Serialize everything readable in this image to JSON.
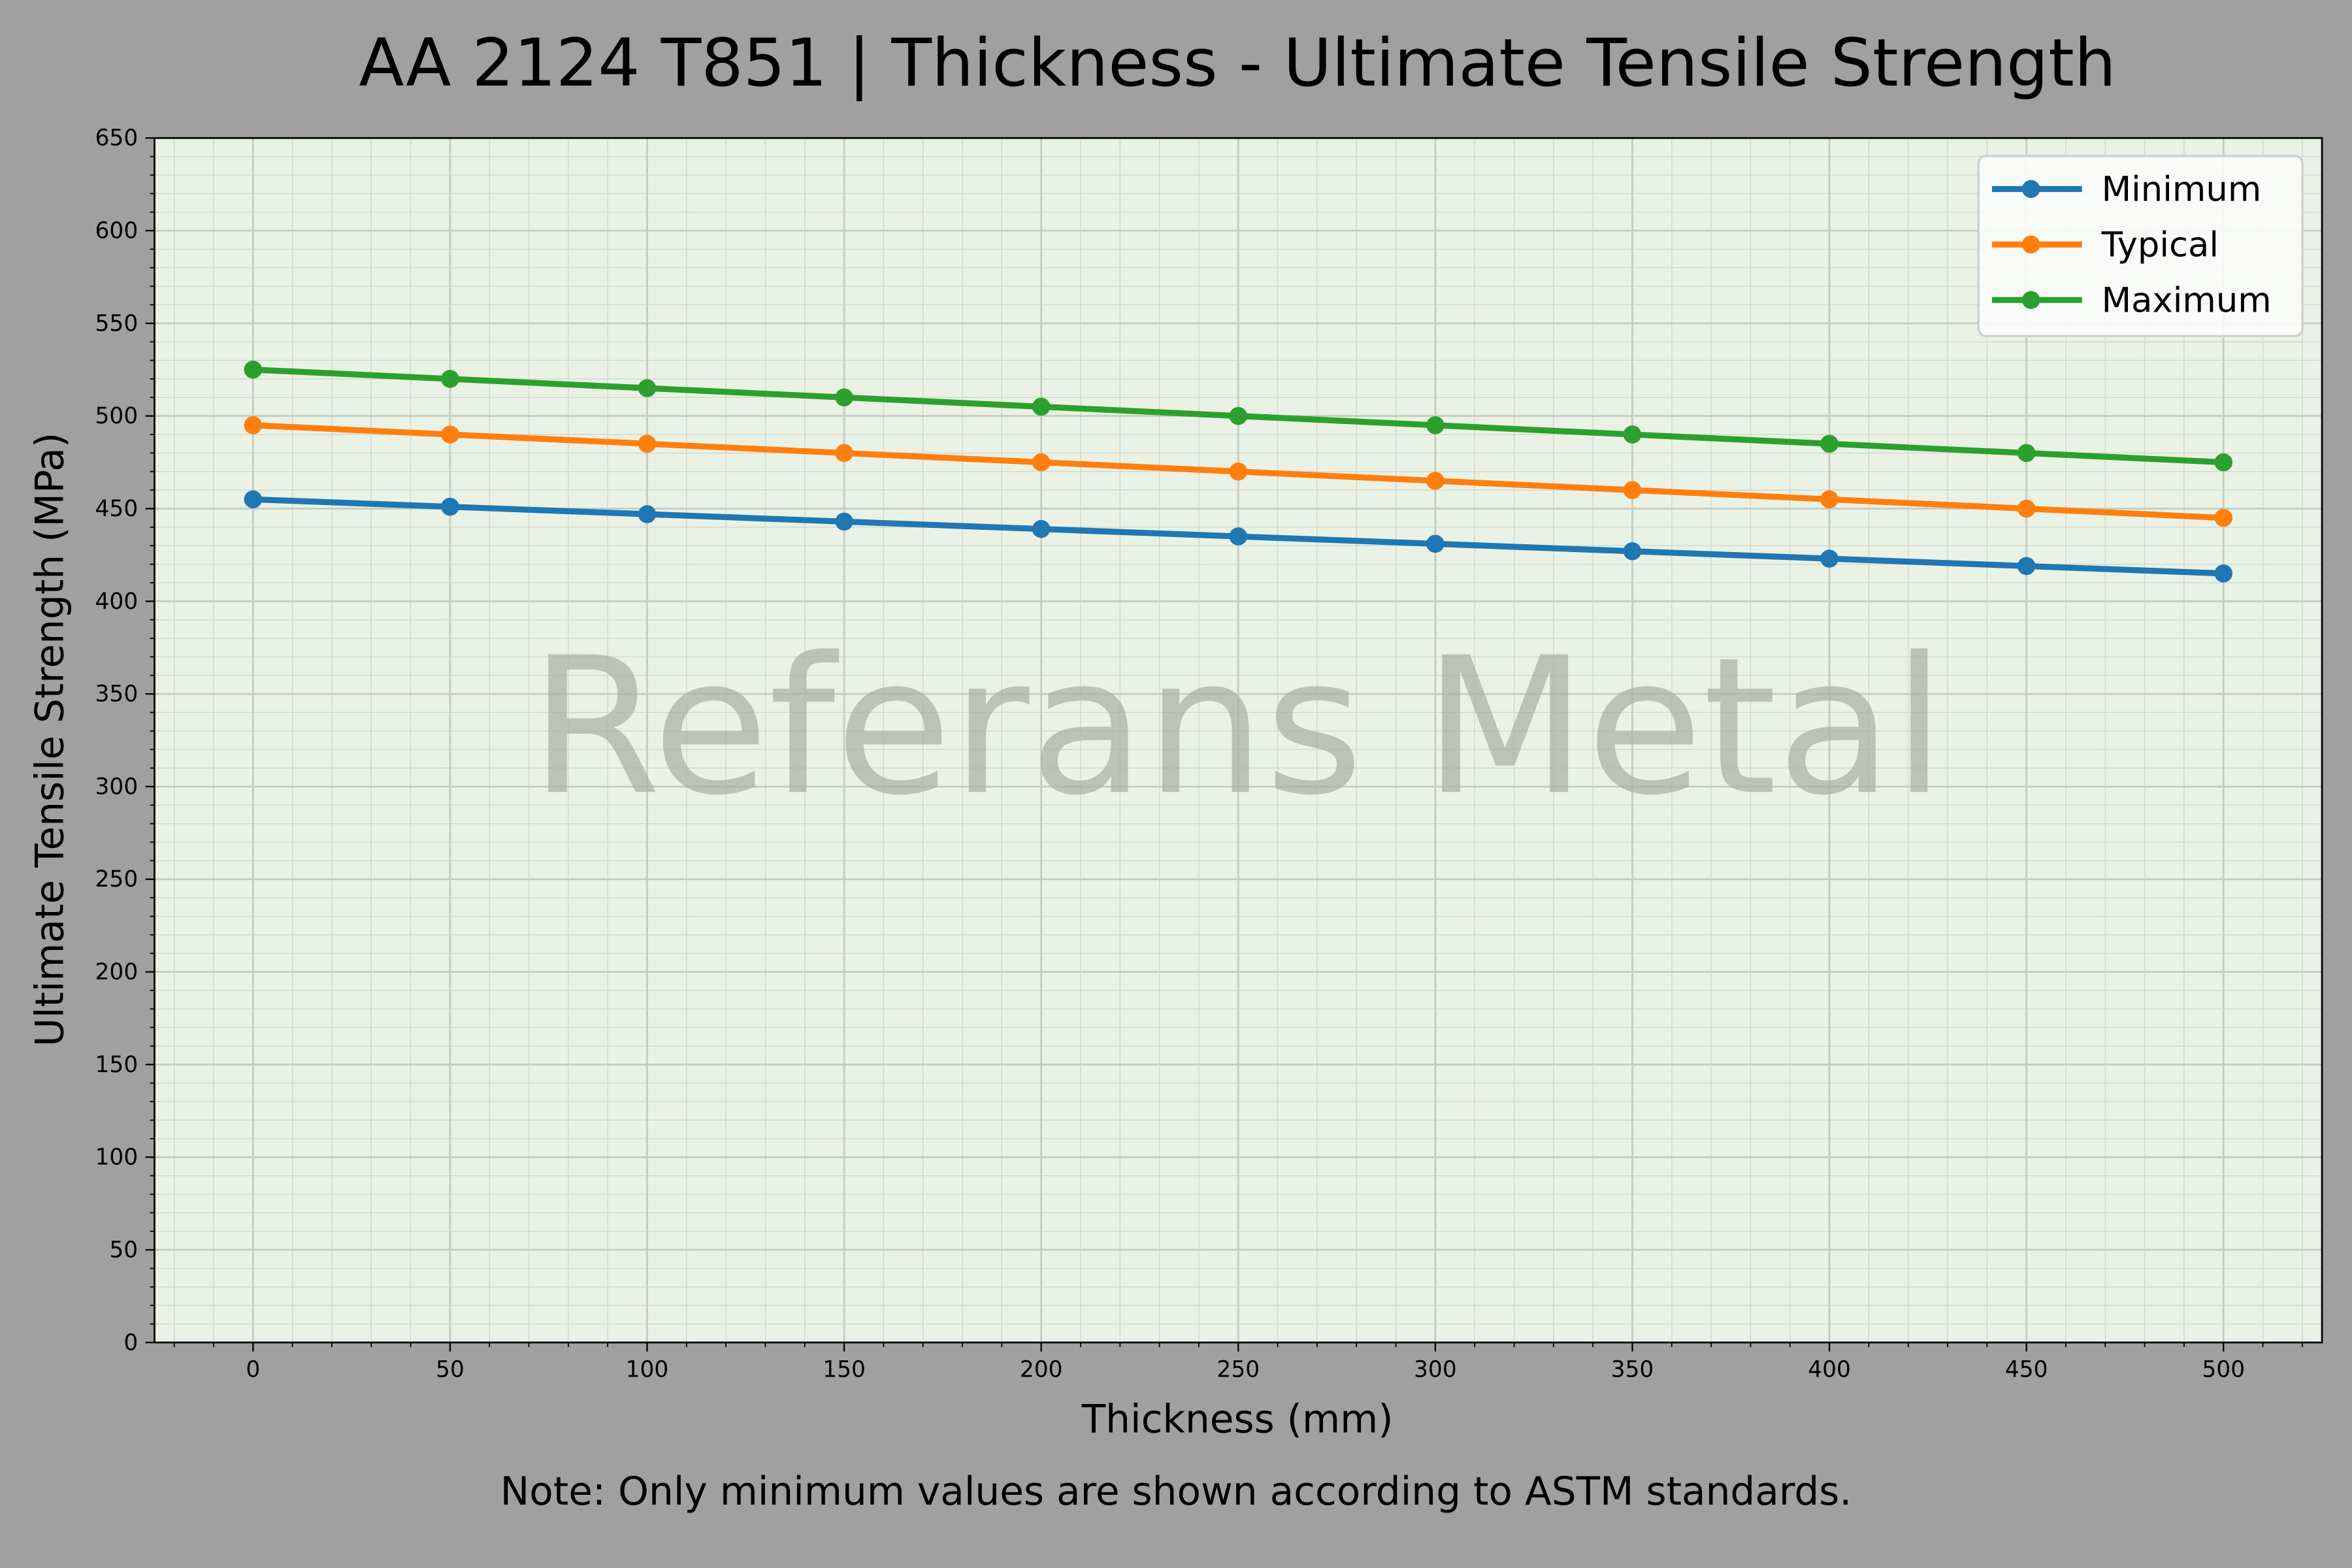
{
  "chart_data": {
    "type": "line",
    "title": "AA 2124 T851 | Thickness - Ultimate Tensile Strength",
    "xlabel": "Thickness (mm)",
    "ylabel": "Ultimate Tensile Strength (MPa)",
    "note": "Note: Only minimum values are shown according to ASTM standards.",
    "watermark": "Referans Metal",
    "x": [
      0,
      50,
      100,
      150,
      200,
      250,
      300,
      350,
      400,
      450,
      500
    ],
    "xlim": [
      -25,
      525
    ],
    "ylim": [
      0,
      650
    ],
    "xticks": [
      0,
      50,
      100,
      150,
      200,
      250,
      300,
      350,
      400,
      450,
      500
    ],
    "yticks": [
      0,
      50,
      100,
      150,
      200,
      250,
      300,
      350,
      400,
      450,
      500,
      550,
      600,
      650
    ],
    "grid": true,
    "legend_position": "top-right",
    "background_color": "#a0a0a0",
    "plot_background_color": "#eaf2e6",
    "series": [
      {
        "name": "Minimum",
        "color": "#1f77b4",
        "values": [
          455,
          451,
          447,
          443,
          439,
          435,
          431,
          427,
          423,
          419,
          415
        ]
      },
      {
        "name": "Typical",
        "color": "#ff7f0e",
        "values": [
          495,
          490,
          485,
          480,
          475,
          470,
          465,
          460,
          455,
          450,
          445
        ]
      },
      {
        "name": "Maximum",
        "color": "#2ca02c",
        "values": [
          525,
          520,
          515,
          510,
          505,
          500,
          495,
          490,
          485,
          480,
          475
        ]
      }
    ]
  }
}
